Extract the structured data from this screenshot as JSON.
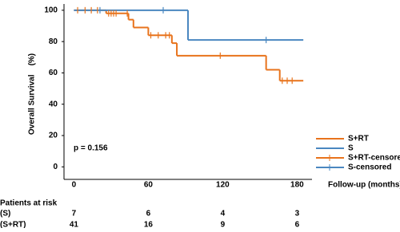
{
  "chart_data": {
    "type": "km",
    "ylabel": "Overall Survival    (%)",
    "xlabel": "Follow-up (months)",
    "annotation": "p = 0.156",
    "xlim": [
      -8,
      192
    ],
    "ylim": [
      -8,
      104
    ],
    "xticks": [
      0,
      60,
      120,
      180
    ],
    "yticks": [
      0,
      20,
      40,
      60,
      80,
      100
    ],
    "series": [
      {
        "name": "S+RT",
        "color": "#e8731c",
        "marker": "step",
        "x": [
          0,
          26,
          44,
          48,
          60,
          79,
          83,
          155,
          166,
          185
        ],
        "values": [
          100,
          98,
          94,
          89,
          84,
          79,
          71,
          62,
          55,
          55
        ]
      },
      {
        "name": "S",
        "color": "#4a87c0",
        "marker": "step",
        "x": [
          0,
          92,
          185
        ],
        "values": [
          100,
          81,
          81
        ]
      },
      {
        "name": "S+RT-censored",
        "color": "#e8731c",
        "marker": "tick",
        "x": [
          3,
          9,
          14,
          19,
          28,
          30,
          32,
          34,
          43,
          62,
          68,
          74,
          77,
          118,
          168,
          172,
          176
        ],
        "values": [
          100,
          100,
          100,
          100,
          98,
          98,
          98,
          98,
          98,
          84,
          84,
          84,
          84,
          71,
          55,
          55,
          55
        ]
      },
      {
        "name": "S-censored",
        "color": "#4a87c0",
        "marker": "tick",
        "x": [
          21,
          72,
          155
        ],
        "values": [
          100,
          100,
          81
        ]
      }
    ],
    "risk_table": {
      "title": "Patients at risk",
      "rows": [
        {
          "label": "(S)",
          "values": [
            7,
            6,
            4,
            3
          ]
        },
        {
          "label": "(S+RT)",
          "values": [
            41,
            16,
            9,
            6
          ]
        }
      ]
    }
  }
}
